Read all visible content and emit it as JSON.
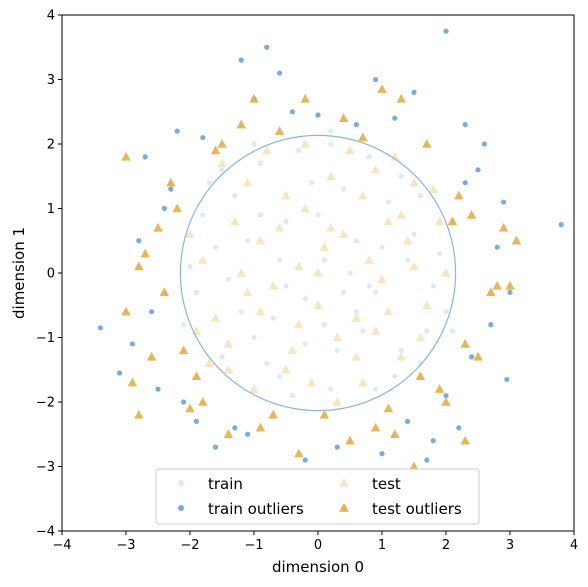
{
  "chart_data": {
    "type": "scatter",
    "title": "",
    "xlabel": "dimension 0",
    "ylabel": "dimension 1",
    "xlim": [
      -4,
      4
    ],
    "ylim": [
      -4,
      4
    ],
    "x_ticks": [
      -4,
      -3,
      -2,
      -1,
      0,
      1,
      2,
      3,
      4
    ],
    "y_ticks": [
      -4,
      -3,
      -2,
      -1,
      0,
      1,
      2,
      3,
      4
    ],
    "x_tick_labels": [
      "−4",
      "−3",
      "−2",
      "−1",
      "0",
      "1",
      "2",
      "3",
      "4"
    ],
    "y_tick_labels": [
      "−4",
      "−3",
      "−2",
      "−1",
      "0",
      "1",
      "2",
      "3",
      "4"
    ],
    "grid": false,
    "legend": {
      "placement": "lower-center",
      "columns": 2,
      "entries": [
        "train",
        "train outliers",
        "test",
        "test outliers"
      ]
    },
    "boundary_circle": {
      "center": [
        0,
        0
      ],
      "radius": 2.15,
      "color": "#8ab6da"
    },
    "colors": {
      "train": "#dceaf7",
      "train_outliers": "#7aabdc",
      "test": "#f7e6c4",
      "test_outliers": "#e3af48"
    },
    "series": [
      {
        "name": "train",
        "marker": "circle",
        "points": [
          [
            0.1,
            0.2
          ],
          [
            -0.5,
            0.8
          ],
          [
            0.9,
            -0.3
          ],
          [
            -1.2,
            -0.6
          ],
          [
            0.4,
            1.3
          ],
          [
            -0.8,
            -1.4
          ],
          [
            1.5,
            0.6
          ],
          [
            -1.6,
            0.4
          ],
          [
            0.2,
            -1.8
          ],
          [
            -0.3,
            1.9
          ],
          [
            1.1,
            1.1
          ],
          [
            -1.3,
            1.2
          ],
          [
            1.3,
            -1.2
          ],
          [
            -1.0,
            -1.0
          ],
          [
            0.6,
            0.5
          ],
          [
            -0.2,
            -0.4
          ],
          [
            1.8,
            -0.2
          ],
          [
            -1.9,
            -0.3
          ],
          [
            0.0,
            0.9
          ],
          [
            0.7,
            -0.9
          ],
          [
            -0.6,
            0.2
          ],
          [
            1.6,
            1.2
          ],
          [
            -1.5,
            -1.3
          ],
          [
            0.3,
            -1.2
          ],
          [
            -0.9,
            1.7
          ],
          [
            1.9,
            0.3
          ],
          [
            -1.8,
            0.9
          ],
          [
            0.8,
            1.8
          ],
          [
            -0.4,
            -1.9
          ],
          [
            1.2,
            -1.6
          ],
          [
            2.0,
            -0.6
          ],
          [
            -2.0,
            0.1
          ],
          [
            0.5,
            0.0
          ],
          [
            -0.1,
            1.4
          ],
          [
            1.4,
            0.2
          ],
          [
            -1.1,
            0.5
          ],
          [
            0.9,
            -1.8
          ],
          [
            -0.7,
            -0.7
          ],
          [
            0.2,
            2.0
          ],
          [
            -1.4,
            -0.1
          ],
          [
            1.7,
            -0.9
          ],
          [
            -0.2,
            -1.1
          ],
          [
            0.6,
            -0.6
          ],
          [
            1.0,
            0.4
          ],
          [
            -0.5,
            -0.2
          ],
          [
            -1.7,
            1.4
          ],
          [
            1.3,
            1.5
          ],
          [
            0.4,
            -0.3
          ],
          [
            -0.9,
            0.9
          ],
          [
            0.1,
            -0.8
          ],
          [
            0.2,
            2.2
          ],
          [
            -1.5,
            1.6
          ],
          [
            2.1,
            -0.9
          ],
          [
            -0.6,
            -1.6
          ],
          [
            0.8,
            -0.2
          ],
          [
            -1.0,
            2.0
          ],
          [
            1.6,
            -1.4
          ],
          [
            -2.1,
            -0.8
          ]
        ]
      },
      {
        "name": "train outliers",
        "marker": "circle",
        "points": [
          [
            2.0,
            3.75
          ],
          [
            -0.8,
            3.5
          ],
          [
            -1.2,
            3.3
          ],
          [
            3.8,
            0.75
          ],
          [
            -3.4,
            -0.85
          ],
          [
            2.95,
            -1.65
          ],
          [
            -3.1,
            -1.55
          ],
          [
            2.3,
            2.3
          ],
          [
            -2.3,
            1.3
          ],
          [
            2.5,
            1.6
          ],
          [
            -2.1,
            -2.0
          ],
          [
            1.8,
            -2.6
          ],
          [
            -1.3,
            -2.4
          ],
          [
            2.7,
            -0.8
          ],
          [
            -2.6,
            -0.6
          ],
          [
            2.4,
            -1.3
          ],
          [
            -1.0,
            2.7
          ],
          [
            1.2,
            2.4
          ],
          [
            -1.8,
            2.1
          ],
          [
            2.8,
            0.4
          ],
          [
            -2.8,
            0.5
          ],
          [
            0.3,
            -2.7
          ],
          [
            -0.4,
            2.5
          ],
          [
            1.7,
            -2.9
          ],
          [
            -2.5,
            -1.8
          ],
          [
            2.6,
            2.0
          ],
          [
            -2.7,
            1.8
          ],
          [
            1.0,
            -2.8
          ],
          [
            -1.6,
            -2.7
          ],
          [
            0.6,
            2.3
          ],
          [
            2.2,
            -2.4
          ],
          [
            -2.2,
            2.2
          ],
          [
            0.9,
            3.0
          ],
          [
            -0.2,
            -2.9
          ],
          [
            2.9,
            1.1
          ],
          [
            -2.9,
            -1.1
          ],
          [
            1.5,
            2.8
          ],
          [
            -1.9,
            -2.3
          ],
          [
            0.0,
            2.45
          ],
          [
            2.3,
            1.4
          ],
          [
            -2.4,
            1.0
          ],
          [
            1.4,
            -2.3
          ],
          [
            -1.1,
            -2.5
          ],
          [
            2.0,
            -1.9
          ],
          [
            -0.6,
            3.1
          ],
          [
            3.0,
            -0.3
          ]
        ]
      },
      {
        "name": "test",
        "marker": "triangle",
        "points": [
          [
            -0.3,
            0.1
          ],
          [
            0.6,
            -0.7
          ],
          [
            -0.9,
            0.5
          ],
          [
            1.1,
            0.8
          ],
          [
            -1.4,
            -1.1
          ],
          [
            0.2,
            1.5
          ],
          [
            -0.5,
            -1.5
          ],
          [
            1.7,
            -0.5
          ],
          [
            -1.8,
            0.2
          ],
          [
            0.9,
            1.6
          ],
          [
            -1.1,
            1.4
          ],
          [
            1.3,
            -1.3
          ],
          [
            0.0,
            -0.5
          ],
          [
            -0.7,
            -0.2
          ],
          [
            0.4,
            0.6
          ],
          [
            1.5,
            0.1
          ],
          [
            -1.6,
            -0.7
          ],
          [
            0.7,
            -1.7
          ],
          [
            -0.2,
            1.0
          ],
          [
            1.9,
            0.8
          ],
          [
            -1.9,
            -0.9
          ],
          [
            0.3,
            -1.0
          ],
          [
            -0.8,
            1.9
          ],
          [
            1.2,
            1.8
          ],
          [
            -1.3,
            0.8
          ],
          [
            0.8,
            0.2
          ],
          [
            -0.4,
            -1.2
          ],
          [
            1.6,
            -1.0
          ],
          [
            -1.5,
            1.7
          ],
          [
            0.1,
            0.4
          ],
          [
            -0.6,
            0.7
          ],
          [
            1.0,
            -0.1
          ],
          [
            -1.0,
            -1.8
          ],
          [
            0.5,
            1.9
          ],
          [
            -1.7,
            -1.4
          ],
          [
            1.8,
            1.3
          ],
          [
            -0.1,
            -1.7
          ],
          [
            0.6,
            -1.3
          ],
          [
            -1.2,
            0.0
          ],
          [
            1.4,
            0.5
          ],
          [
            -0.3,
            -0.8
          ],
          [
            0.2,
            0.7
          ],
          [
            -0.9,
            -0.6
          ],
          [
            1.1,
            -0.6
          ],
          [
            -2.0,
            0.6
          ],
          [
            0.3,
            -2.0
          ],
          [
            -0.2,
            2.0
          ],
          [
            2.0,
            0.0
          ],
          [
            1.5,
            1.4
          ],
          [
            -1.4,
            -1.5
          ],
          [
            0.9,
            -0.9
          ],
          [
            -0.5,
            1.2
          ],
          [
            0.0,
            0.0
          ],
          [
            1.3,
            0.9
          ],
          [
            -1.1,
            -0.3
          ],
          [
            0.7,
            1.2
          ]
        ]
      },
      {
        "name": "test outliers",
        "marker": "triangle",
        "points": [
          [
            1.0,
            2.85
          ],
          [
            3.1,
            0.5
          ],
          [
            -2.9,
            -1.7
          ],
          [
            -3.0,
            1.8
          ],
          [
            2.3,
            -2.6
          ],
          [
            -2.8,
            -2.2
          ],
          [
            1.5,
            -3.0
          ],
          [
            -2.0,
            -2.1
          ],
          [
            -1.4,
            -2.5
          ],
          [
            0.5,
            -2.6
          ],
          [
            -0.3,
            -2.8
          ],
          [
            2.0,
            -2.0
          ],
          [
            1.7,
            2.0
          ],
          [
            -1.5,
            2.0
          ],
          [
            2.4,
            0.9
          ],
          [
            -2.4,
            -0.3
          ],
          [
            2.7,
            -0.3
          ],
          [
            -2.7,
            0.3
          ],
          [
            1.1,
            -2.1
          ],
          [
            -2.3,
            1.4
          ],
          [
            2.9,
            0.7
          ],
          [
            -2.6,
            -1.3
          ],
          [
            0.4,
            2.4
          ],
          [
            -1.0,
            2.7
          ],
          [
            1.3,
            2.7
          ],
          [
            -1.8,
            -2.0
          ],
          [
            2.5,
            -1.3
          ],
          [
            -2.2,
            1.0
          ],
          [
            2.2,
            1.2
          ],
          [
            -0.7,
            -2.2
          ],
          [
            0.9,
            -2.4
          ],
          [
            -1.2,
            2.3
          ],
          [
            2.8,
            -0.2
          ],
          [
            -2.8,
            0.1
          ],
          [
            1.9,
            -1.8
          ],
          [
            -1.9,
            -1.6
          ],
          [
            -0.2,
            2.7
          ],
          [
            0.1,
            -2.2
          ],
          [
            -0.6,
            2.2
          ],
          [
            2.1,
            0.8
          ],
          [
            -3.0,
            -0.6
          ],
          [
            3.0,
            -0.2
          ],
          [
            0.7,
            2.1
          ],
          [
            -2.1,
            -1.2
          ],
          [
            1.6,
            -1.6
          ],
          [
            -1.6,
            1.9
          ],
          [
            2.3,
            -1.1
          ],
          [
            -2.5,
            0.7
          ],
          [
            1.2,
            -2.5
          ],
          [
            -0.9,
            -2.4
          ]
        ]
      }
    ]
  }
}
